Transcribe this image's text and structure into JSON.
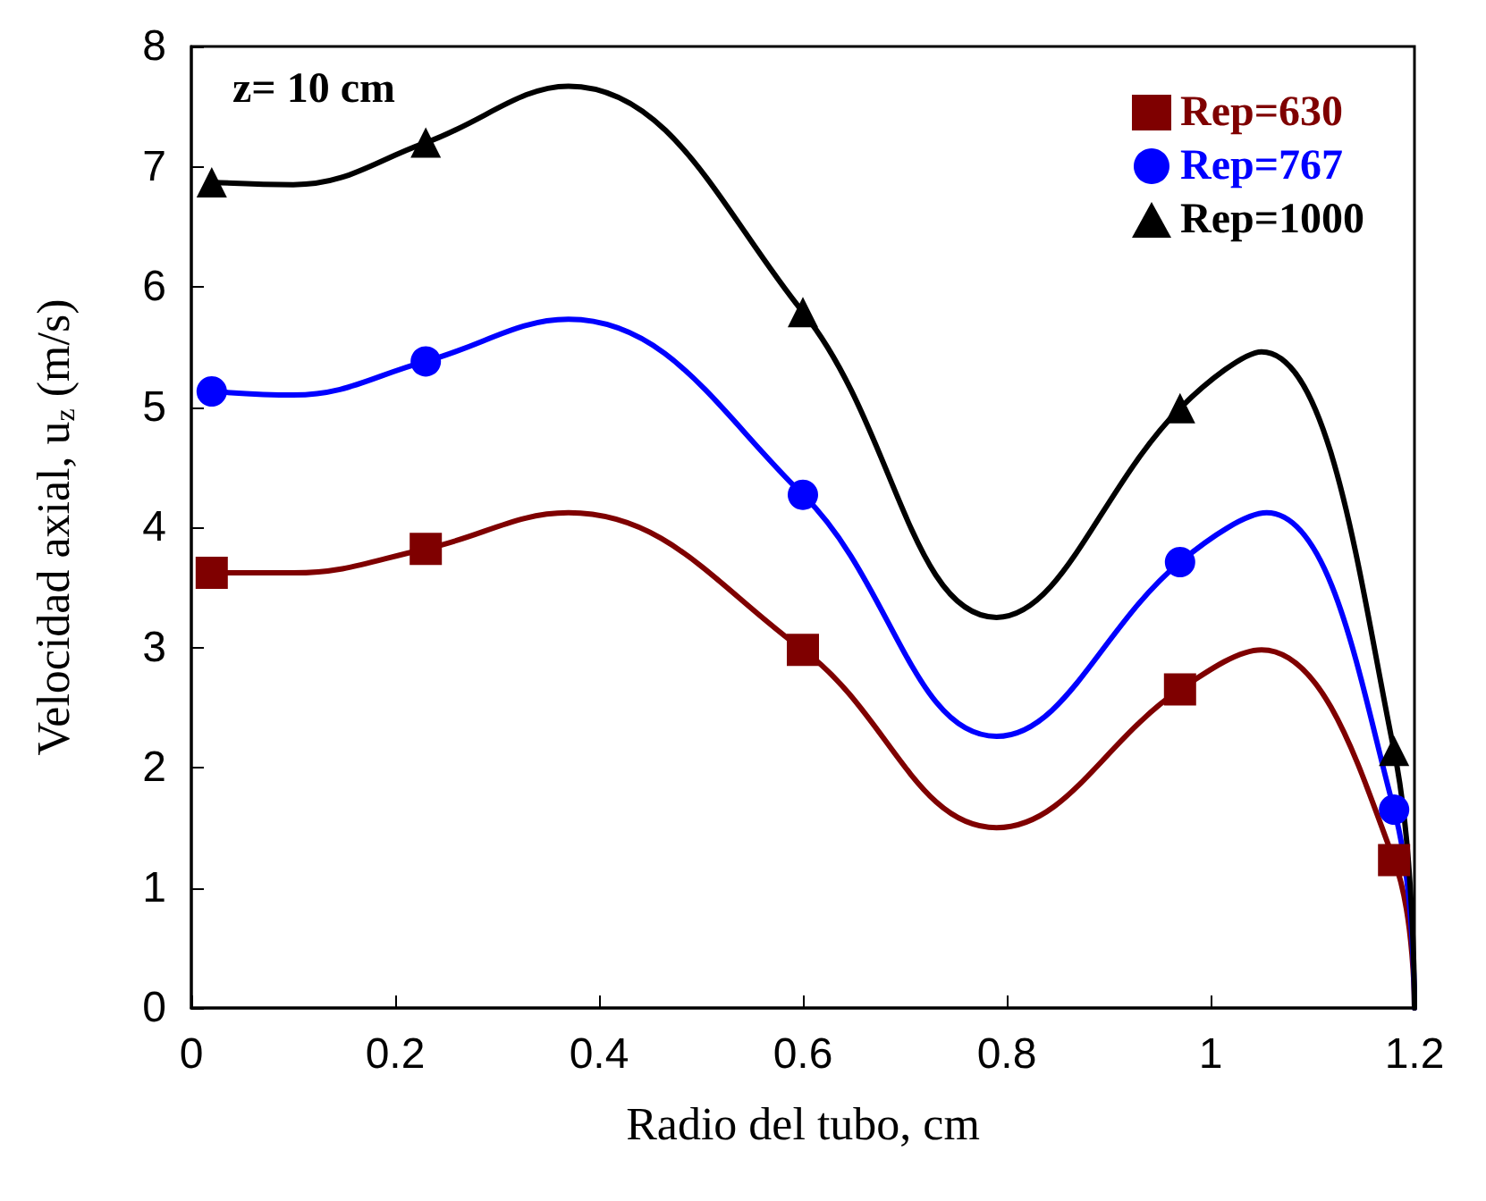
{
  "chart_data": {
    "type": "line",
    "xlabel": "Radio del tubo, cm",
    "ylabel": "Velocidad axial, u$_{z}$ (m/s)",
    "annotations": [
      "z= 10 cm"
    ],
    "xlim": [
      0,
      1.2
    ],
    "xticks": [
      0,
      0.2,
      0.4,
      0.6,
      0.8,
      1,
      1.2
    ],
    "ylim": [
      0,
      8
    ],
    "yticks": [
      0,
      1,
      2,
      3,
      4,
      5,
      6,
      7,
      8
    ],
    "grid": false,
    "legend": "top right",
    "series": [
      {
        "type": "scatter",
        "name": "Rep=630",
        "color": "#7f0000",
        "marker": "square",
        "x": [
          0.02,
          0.23,
          0.6,
          0.97,
          1.18
        ],
        "values": [
          3.62,
          3.82,
          2.98,
          2.65,
          1.23
        ]
      },
      {
        "type": "scatter",
        "name": "Rep=767",
        "color": "#0000ff",
        "marker": "circle",
        "x": [
          0.02,
          0.23,
          0.6,
          0.97,
          1.18
        ],
        "values": [
          5.13,
          5.38,
          4.27,
          3.71,
          1.65
        ]
      },
      {
        "type": "scatter",
        "name": "Rep=1000",
        "color": "#000000",
        "marker": "triangle",
        "x": [
          0.02,
          0.23,
          0.6,
          0.97,
          1.18
        ],
        "values": [
          6.87,
          7.2,
          5.79,
          4.99,
          2.14
        ]
      },
      {
        "color": "#7f0000",
        "x": [
          0.02,
          0.1,
          0.23,
          0.37,
          0.6,
          0.79,
          0.97,
          1.05,
          1.18,
          1.2
        ],
        "values": [
          3.62,
          3.62,
          3.82,
          4.12,
          2.98,
          1.5,
          2.65,
          2.98,
          1.23,
          0
        ]
      },
      {
        "color": "#0000ff",
        "x": [
          0.02,
          0.1,
          0.23,
          0.37,
          0.6,
          0.79,
          0.97,
          1.055,
          1.18,
          1.2
        ],
        "values": [
          5.13,
          5.1,
          5.38,
          5.73,
          4.27,
          2.26,
          3.71,
          4.12,
          1.65,
          0
        ]
      },
      {
        "color": "#000000",
        "x": [
          0.02,
          0.1,
          0.23,
          0.37,
          0.6,
          0.79,
          0.97,
          1.05,
          1.18,
          1.2
        ],
        "values": [
          6.87,
          6.85,
          7.2,
          7.67,
          5.79,
          3.25,
          4.99,
          5.46,
          2.14,
          0
        ]
      }
    ]
  }
}
